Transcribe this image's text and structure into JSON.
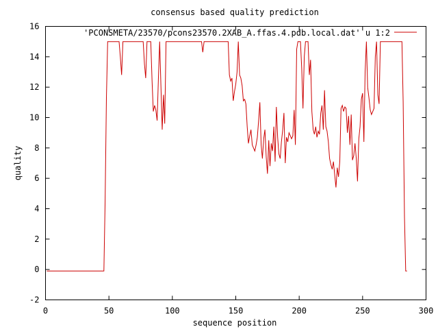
{
  "chart_data": {
    "type": "line",
    "title": "consensus based quality prediction",
    "xlabel": "sequence position",
    "ylabel": "quality",
    "xlim": [
      0,
      300
    ],
    "ylim": [
      -2,
      16
    ],
    "xticks": [
      0,
      50,
      100,
      150,
      200,
      250,
      300
    ],
    "yticks": [
      -2,
      0,
      2,
      4,
      6,
      8,
      10,
      12,
      14,
      16
    ],
    "grid": false,
    "legend": "top-right",
    "series": [
      {
        "name": "'PCONSMETA/23570/pcons23570.2XAB_A.ffas.4.pdb.local.dat' u 1:2",
        "color": "#cc0000",
        "points": [
          [
            1,
            -0.1
          ],
          [
            46,
            -0.1
          ],
          [
            47,
            4.5
          ],
          [
            48,
            11.3
          ],
          [
            49,
            15
          ],
          [
            58,
            15
          ],
          [
            59,
            14
          ],
          [
            60,
            12.8
          ],
          [
            61,
            15
          ],
          [
            77,
            15
          ],
          [
            78,
            13.5
          ],
          [
            79,
            12.6
          ],
          [
            80,
            15
          ],
          [
            83,
            15
          ],
          [
            84,
            12.4
          ],
          [
            85,
            10.4
          ],
          [
            86,
            10.8
          ],
          [
            87,
            10.5
          ],
          [
            88,
            9.8
          ],
          [
            89,
            12.5
          ],
          [
            90,
            15
          ],
          [
            91,
            12
          ],
          [
            92,
            9.2
          ],
          [
            93,
            11.5
          ],
          [
            94,
            9.6
          ],
          [
            95,
            15
          ],
          [
            123,
            15
          ],
          [
            124,
            14.3
          ],
          [
            125,
            15
          ],
          [
            144,
            15
          ],
          [
            145,
            12.8
          ],
          [
            146,
            12.4
          ],
          [
            147,
            12.6
          ],
          [
            148,
            11.1
          ],
          [
            149,
            11.7
          ],
          [
            150,
            12.2
          ],
          [
            151,
            13
          ],
          [
            152,
            15
          ],
          [
            153,
            12.8
          ],
          [
            154,
            12.6
          ],
          [
            155,
            12.1
          ],
          [
            156,
            11.1
          ],
          [
            157,
            11.2
          ],
          [
            158,
            10.9
          ],
          [
            159,
            9.4
          ],
          [
            160,
            8.3
          ],
          [
            161,
            8.8
          ],
          [
            162,
            9.2
          ],
          [
            163,
            8.2
          ],
          [
            164,
            8
          ],
          [
            165,
            7.8
          ],
          [
            166,
            8.2
          ],
          [
            167,
            8.7
          ],
          [
            168,
            9.8
          ],
          [
            169,
            11
          ],
          [
            170,
            8.2
          ],
          [
            171,
            7.3
          ],
          [
            172,
            8.6
          ],
          [
            173,
            9.2
          ],
          [
            174,
            7.4
          ],
          [
            175,
            6.3
          ],
          [
            176,
            8.5
          ],
          [
            177,
            6.8
          ],
          [
            178,
            8.3
          ],
          [
            179,
            7.8
          ],
          [
            180,
            9.4
          ],
          [
            181,
            7.1
          ],
          [
            182,
            10.7
          ],
          [
            183,
            8.7
          ],
          [
            184,
            7.6
          ],
          [
            185,
            7.3
          ],
          [
            186,
            8.4
          ],
          [
            187,
            9.2
          ],
          [
            188,
            10.3
          ],
          [
            189,
            7
          ],
          [
            190,
            8.7
          ],
          [
            191,
            8.4
          ],
          [
            192,
            9
          ],
          [
            193,
            8.8
          ],
          [
            194,
            8.6
          ],
          [
            195,
            8.8
          ],
          [
            196,
            10.5
          ],
          [
            197,
            8.2
          ],
          [
            198,
            14.5
          ],
          [
            199,
            15
          ],
          [
            201,
            15
          ],
          [
            202,
            13.2
          ],
          [
            203,
            10.6
          ],
          [
            204,
            14
          ],
          [
            205,
            15
          ],
          [
            207,
            15
          ],
          [
            208,
            12.8
          ],
          [
            209,
            13.8
          ],
          [
            210,
            10.4
          ],
          [
            211,
            9.2
          ],
          [
            212,
            8.9
          ],
          [
            213,
            9.4
          ],
          [
            214,
            8.7
          ],
          [
            215,
            9.1
          ],
          [
            216,
            8.9
          ],
          [
            217,
            10.3
          ],
          [
            218,
            10.8
          ],
          [
            219,
            9.2
          ],
          [
            220,
            11.8
          ],
          [
            221,
            9.4
          ],
          [
            222,
            9.1
          ],
          [
            223,
            8.4
          ],
          [
            224,
            7.3
          ],
          [
            225,
            6.9
          ],
          [
            226,
            6.6
          ],
          [
            227,
            7.1
          ],
          [
            228,
            6.2
          ],
          [
            229,
            5.4
          ],
          [
            230,
            6.7
          ],
          [
            231,
            6.1
          ],
          [
            232,
            7.1
          ],
          [
            233,
            10.6
          ],
          [
            234,
            10.8
          ],
          [
            235,
            10.4
          ],
          [
            236,
            10.7
          ],
          [
            237,
            10.6
          ],
          [
            238,
            9
          ],
          [
            239,
            10.1
          ],
          [
            240,
            8.2
          ],
          [
            241,
            10.2
          ],
          [
            242,
            7.2
          ],
          [
            243,
            7.5
          ],
          [
            244,
            8.3
          ],
          [
            245,
            7.3
          ],
          [
            246,
            5.8
          ],
          [
            247,
            8.6
          ],
          [
            248,
            9.4
          ],
          [
            249,
            11.2
          ],
          [
            250,
            11.6
          ],
          [
            251,
            8.4
          ],
          [
            252,
            13
          ],
          [
            253,
            15
          ],
          [
            254,
            12
          ],
          [
            255,
            11.3
          ],
          [
            256,
            10.5
          ],
          [
            257,
            10.2
          ],
          [
            258,
            10.4
          ],
          [
            259,
            10.6
          ],
          [
            260,
            14
          ],
          [
            261,
            15
          ],
          [
            262,
            11.5
          ],
          [
            263,
            10.9
          ],
          [
            264,
            15
          ],
          [
            281,
            15
          ],
          [
            282,
            11
          ],
          [
            283,
            3.5
          ],
          [
            284,
            -0.1
          ],
          [
            285,
            -0.1
          ]
        ]
      }
    ]
  }
}
